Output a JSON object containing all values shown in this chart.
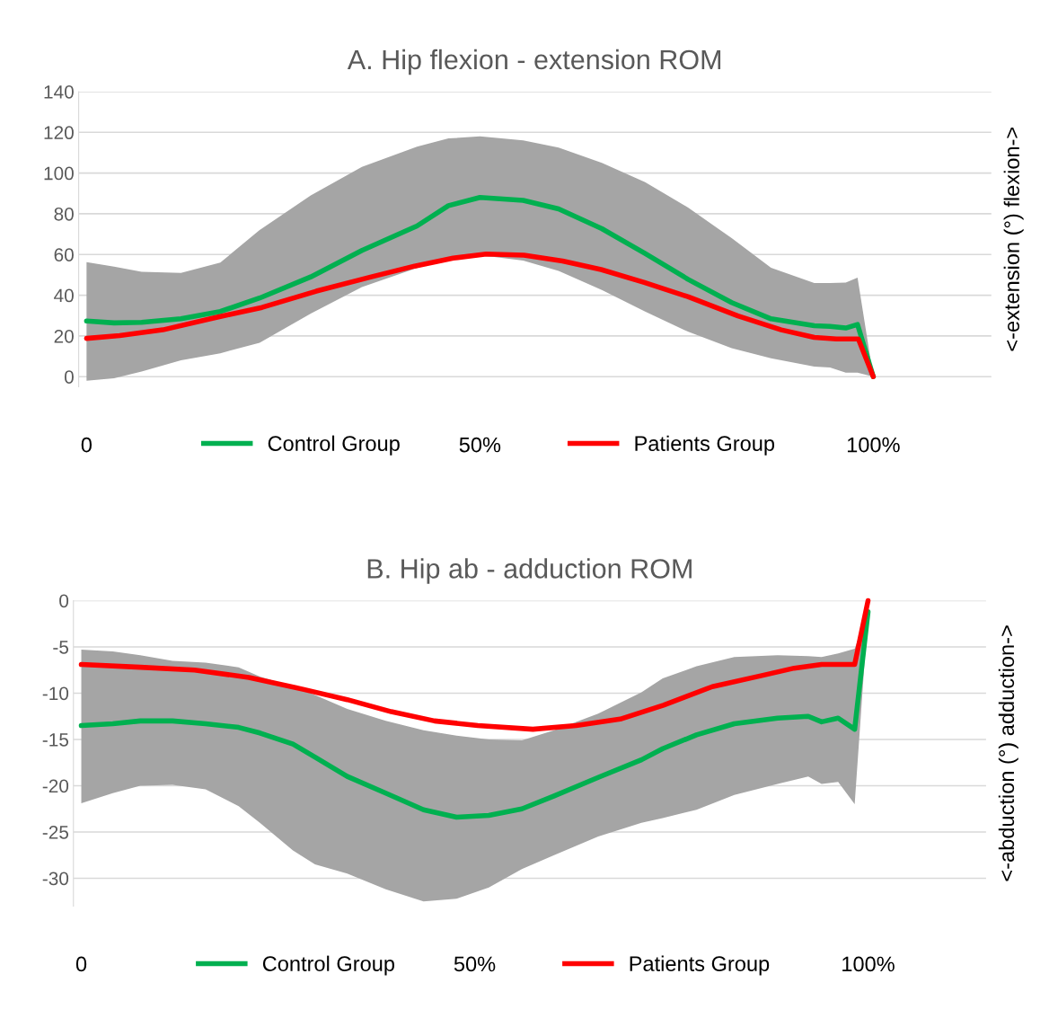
{
  "chart_data": [
    {
      "type": "line",
      "title": "A. Hip flexion - extension ROM",
      "ylabel": "<-extension (°) flexion->",
      "xlim": [
        -1,
        115
      ],
      "xticks": [
        {
          "value": 0,
          "label": "0"
        },
        {
          "value": 50,
          "label": "50%"
        },
        {
          "value": 100,
          "label": "100%"
        }
      ],
      "ylim": [
        -5,
        140
      ],
      "yticks": [
        0,
        20,
        40,
        60,
        80,
        100,
        120,
        140
      ],
      "grid": "y",
      "legend": "bottom",
      "series": [
        {
          "name": "Control Group",
          "color": "#00b050",
          "x": [
            0,
            3.5,
            7,
            12,
            17,
            22,
            28.5,
            35,
            42,
            46,
            50,
            55.5,
            60,
            65.5,
            71,
            76.5,
            82,
            87,
            92.5,
            94.5,
            96.5,
            98,
            100
          ],
          "values": [
            27.3,
            26.4,
            26.7,
            28.4,
            32,
            38.6,
            49,
            62,
            74,
            84,
            88,
            86.6,
            82.4,
            72.7,
            60.5,
            47.7,
            36.4,
            28.4,
            25,
            24.7,
            23.9,
            25.6,
            0
          ],
          "upper": [
            56.3,
            54,
            51.5,
            51,
            56,
            72,
            89,
            103,
            113,
            117,
            118,
            116,
            112.5,
            105,
            95.5,
            83,
            68,
            53.5,
            46,
            46,
            46.2,
            48.6,
            0
          ],
          "lower": [
            -2,
            -0.8,
            2.5,
            8,
            11.5,
            16.6,
            31,
            44,
            53.4,
            58,
            59.7,
            57,
            52,
            42.6,
            32,
            22,
            14,
            9,
            5,
            4.5,
            2,
            2,
            0
          ]
        },
        {
          "name": "Patients Group",
          "color": "#ff0000",
          "x": [
            0,
            4.2,
            9.7,
            16,
            22.3,
            29.2,
            36.2,
            41.7,
            46.6,
            50.8,
            55.6,
            60.5,
            65.4,
            70.9,
            76.5,
            82.8,
            88.3,
            92.5,
            95.3,
            98.1,
            100
          ],
          "values": [
            18.8,
            20.2,
            23,
            28.7,
            34,
            42,
            49,
            54.3,
            58.2,
            60.2,
            59.7,
            56.8,
            52.6,
            46.3,
            39.2,
            29.8,
            23,
            19.3,
            18.5,
            18.5,
            0
          ]
        }
      ]
    },
    {
      "type": "line",
      "title": "B. Hip ab - adduction ROM",
      "ylabel": "<-abduction (°) adduction->",
      "xlim": [
        -1,
        115
      ],
      "xticks": [
        {
          "value": 0,
          "label": "0"
        },
        {
          "value": 50,
          "label": "50%"
        },
        {
          "value": 100,
          "label": "100%"
        }
      ],
      "ylim": [
        -33,
        0
      ],
      "yticks": [
        {
          "value": 0,
          "label": "0"
        },
        {
          "value": -5,
          "label": "-5"
        },
        {
          "value": -10,
          "label": "-10"
        },
        {
          "value": -15,
          "label": "-15"
        },
        {
          "value": -20,
          "label": "-20"
        },
        {
          "value": -25,
          "label": "-25"
        },
        {
          "value": -30,
          "label": "-30"
        }
      ],
      "grid": "y",
      "legend": "bottom",
      "series": [
        {
          "name": "Control Group",
          "color": "#00b050",
          "x": [
            0,
            4,
            7.5,
            11.6,
            15.8,
            20,
            22.7,
            26.9,
            29.7,
            33.8,
            38.7,
            43.5,
            47.7,
            51.8,
            56,
            60.1,
            65.7,
            71.2,
            73.9,
            78.2,
            83,
            88.5,
            92.4,
            94.1,
            96.2,
            98.3,
            100
          ],
          "values": [
            -13.5,
            -13.3,
            -13,
            -13,
            -13.3,
            -13.7,
            -14.3,
            -15.5,
            -16.9,
            -19,
            -20.8,
            -22.6,
            -23.4,
            -23.2,
            -22.5,
            -21.1,
            -19.1,
            -17.2,
            -16,
            -14.5,
            -13.3,
            -12.7,
            -12.5,
            -13.1,
            -12.7,
            -13.9,
            -1.2
          ],
          "upper": [
            -5.3,
            -5.5,
            -5.9,
            -6.5,
            -6.7,
            -7.2,
            -8.2,
            -9.3,
            -10.2,
            -11.7,
            -13,
            -14,
            -14.6,
            -15,
            -15.1,
            -14,
            -12.2,
            -9.9,
            -8.4,
            -7.1,
            -6.1,
            -5.9,
            -6,
            -6.1,
            -5.7,
            -5.2,
            -1.2
          ],
          "lower": [
            -21.9,
            -20.8,
            -20,
            -19.9,
            -20.4,
            -22.2,
            -24,
            -27,
            -28.5,
            -29.5,
            -31.2,
            -32.5,
            -32.2,
            -31,
            -29,
            -27.5,
            -25.5,
            -24,
            -23.5,
            -22.6,
            -21,
            -19.8,
            -19,
            -19.8,
            -19.6,
            -22,
            -1.2
          ]
        },
        {
          "name": "Patients Group",
          "color": "#ff0000",
          "x": [
            0,
            7.5,
            14.4,
            21.3,
            28.3,
            33.8,
            39.4,
            44.9,
            50.4,
            57.4,
            62.9,
            68.5,
            74,
            80.2,
            86.5,
            90.6,
            94.1,
            98.3,
            100
          ],
          "values": [
            -6.9,
            -7.2,
            -7.5,
            -8.3,
            -9.6,
            -10.7,
            -12,
            -13,
            -13.5,
            -13.9,
            -13.5,
            -12.8,
            -11.3,
            -9.3,
            -8.1,
            -7.3,
            -6.9,
            -6.9,
            0
          ]
        }
      ]
    }
  ]
}
